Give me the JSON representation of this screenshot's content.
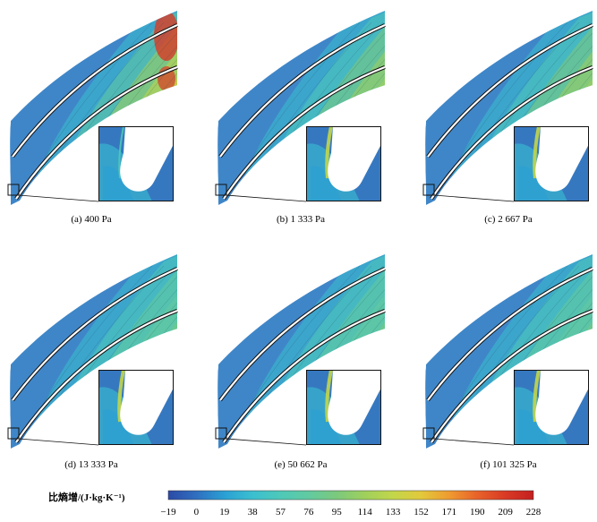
{
  "figure": {
    "panels": [
      {
        "caption": "(a) 400 Pa",
        "intensity": 1.0
      },
      {
        "caption": "(b) 1 333 Pa",
        "intensity": 0.55
      },
      {
        "caption": "(c) 2 667 Pa",
        "intensity": 0.5
      },
      {
        "caption": "(d) 13 333 Pa",
        "intensity": 0.4
      },
      {
        "caption": "(e) 50 662 Pa",
        "intensity": 0.35
      },
      {
        "caption": "(f) 101 325 Pa",
        "intensity": 0.35
      }
    ],
    "colorbar": {
      "label": "比熵增/(J·kg·K⁻¹)",
      "ticks": [
        "−19",
        "0",
        "19",
        "38",
        "57",
        "76",
        "95",
        "114",
        "133",
        "152",
        "171",
        "190",
        "209",
        "228"
      ],
      "colors": [
        "#2c4aa6",
        "#2f6fc0",
        "#2aa0d4",
        "#3bbfd0",
        "#4ec9b8",
        "#62caa0",
        "#7cc97c",
        "#9fd05c",
        "#c3d64a",
        "#e2c93c",
        "#ef9b30",
        "#e8622a",
        "#d93a25",
        "#c42020"
      ]
    }
  }
}
